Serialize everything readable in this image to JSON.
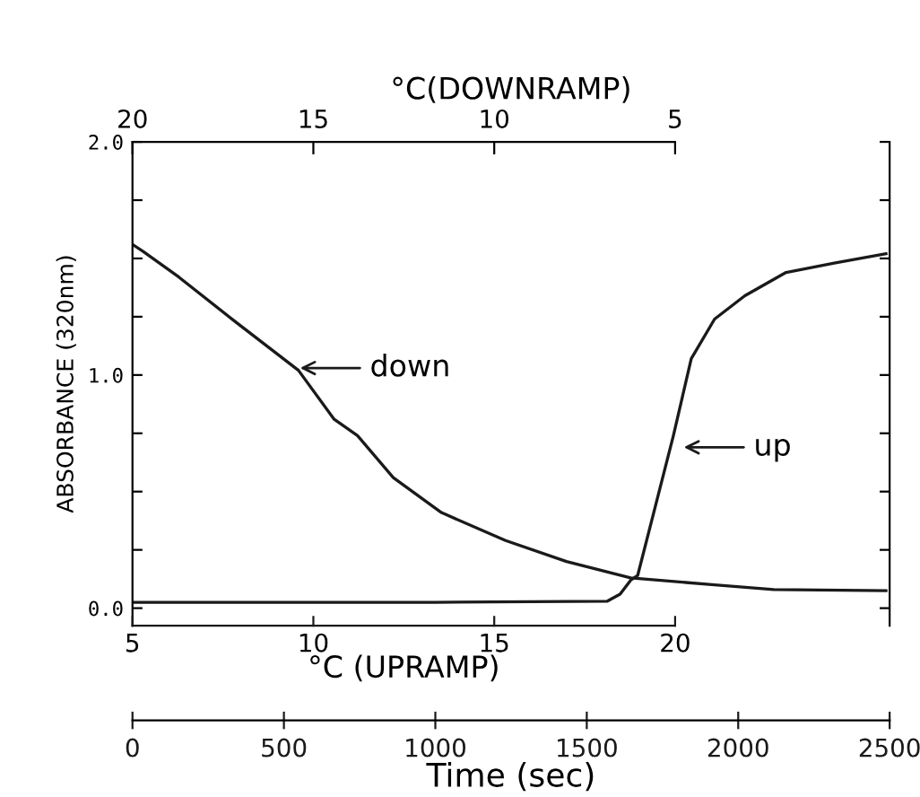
{
  "chart_data": {
    "type": "line",
    "xlabel": "Time (sec)",
    "ylabel": "ABSORBANCE (320nm)",
    "x2label": "°C(DOWNRAMP)",
    "xlim": [
      0,
      2500
    ],
    "xticks": [
      0,
      500,
      1000,
      1500,
      2000,
      2500
    ],
    "x2lim": [
      20,
      -0.93
    ],
    "x2ticks": [
      20,
      15,
      10,
      5
    ],
    "ylim": [
      -0.075,
      2.0
    ],
    "yticks": [
      {
        "value": 0,
        "label": "0.0"
      },
      {
        "value": 0.25,
        "label": null
      },
      {
        "value": 0.5,
        "label": null
      },
      {
        "value": 0.75,
        "label": null
      },
      {
        "value": 1.0,
        "label": "1.0"
      },
      {
        "value": 1.25,
        "label": null
      },
      {
        "value": 1.5,
        "label": null
      },
      {
        "value": 1.75,
        "label": null
      },
      {
        "value": 2.0,
        "label": "2.0"
      }
    ],
    "grid": false,
    "legend": false,
    "marker": "none",
    "line_style": "solid",
    "series": [
      {
        "color": "#1a1a1a",
        "x": [
          0,
          35,
          153,
          348,
          548,
          666,
          743,
          861,
          1020,
          1232,
          1433,
          1645,
          1922,
          2117,
          2488
        ],
        "values": [
          1.56,
          1.53,
          1.42,
          1.22,
          1.02,
          0.81,
          0.74,
          0.56,
          0.41,
          0.29,
          0.2,
          0.13,
          0.1,
          0.08,
          0.075
        ]
      },
      {
        "color": "#1a1a1a",
        "x": [
          0,
          1000,
          1568,
          1610,
          1645,
          1668,
          1727,
          1786,
          1845,
          1922,
          2022,
          2158,
          2317,
          2488
        ],
        "values": [
          0.025,
          0.025,
          0.03,
          0.06,
          0.12,
          0.14,
          0.44,
          0.74,
          1.07,
          1.24,
          1.34,
          1.44,
          1.48,
          1.52
        ]
      }
    ],
    "annotations": [
      "5",
      "10",
      "15",
      "20",
      "°C (UPRAMP)",
      {
        "text": "down",
        "x": 537,
        "y": 1.03
      },
      {
        "text": "up",
        "x": 1804,
        "y": 0.69
      }
    ]
  }
}
